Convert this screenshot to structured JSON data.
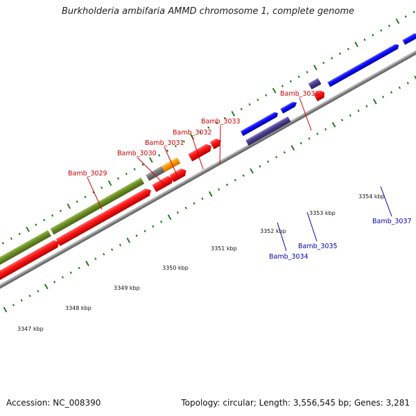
{
  "title": "Burkholderia ambifaria AMMD chromosome 1, complete genome",
  "accession": "Accession: NC_008390",
  "topology": "Topology: circular; Length: 3,556,545 bp; Genes: 3,281",
  "kbp_labels": [
    "3347 kbp",
    "3348 kbp",
    "3349 kbp",
    "3350 kbp",
    "3351 kbp",
    "3352 kbp",
    "3353 kbp",
    "3354 kbp"
  ],
  "gene_labels_top": [
    "Bamb_3029",
    "Bamb_3030",
    "Bamb_3031",
    "Bamb_3032",
    "Bamb_3033",
    "Bamb_3036"
  ],
  "gene_labels_bottom": [
    "Bamb_3034",
    "Bamb_3035",
    "Bamb_3037"
  ],
  "colors": {
    "forward_gene": "#ff0000",
    "reverse_gene": "#0000ff",
    "olive_feature": "#6b8e23",
    "gray_feature": "#777777",
    "orange_feature": "#ff9900",
    "purple_feature": "#4b3d8c",
    "tick_green": "#1f7a1f",
    "label_top": "#cc0000",
    "label_bottom": "#0000aa"
  }
}
